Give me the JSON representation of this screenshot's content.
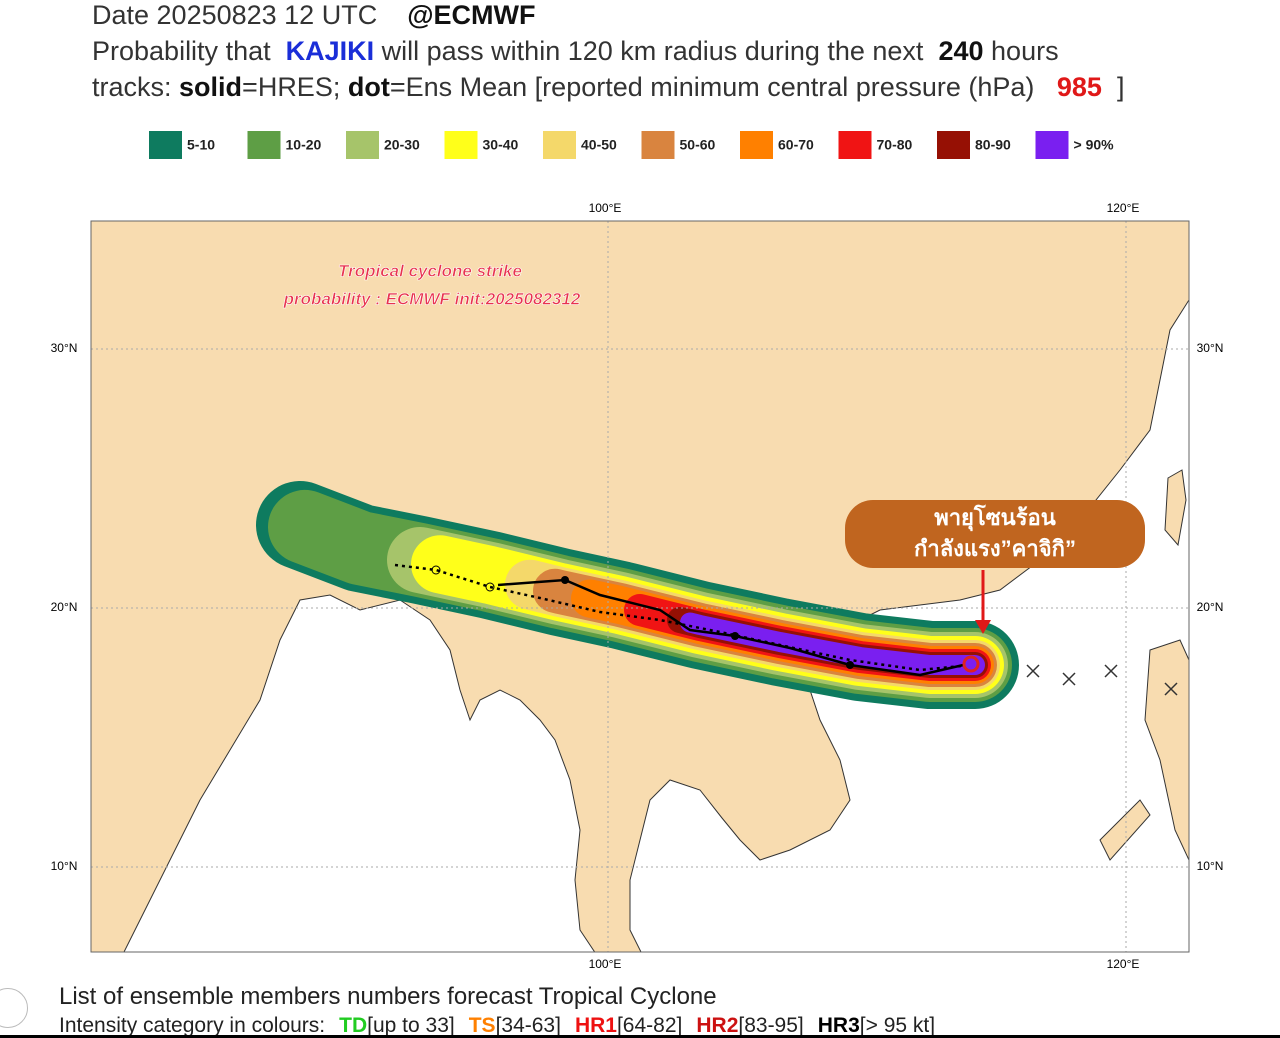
{
  "header": {
    "date": "Date 20250823 12 UTC",
    "source": "@ECMWF",
    "line2": [
      "Probability that",
      "KAJIKI",
      "will pass within 120 km radius during the next",
      "240",
      "hours"
    ],
    "line3": [
      "tracks:",
      "solid",
      "=HRES;",
      "dot",
      "=Ens Mean [reported minimum central pressure (hPa)",
      "985",
      "]"
    ]
  },
  "legend": [
    {
      "label": "5-10",
      "color": "#0e7b5f"
    },
    {
      "label": "10-20",
      "color": "#5e9e45"
    },
    {
      "label": "20-30",
      "color": "#a6c46a"
    },
    {
      "label": "30-40",
      "color": "#ffff1a"
    },
    {
      "label": "40-50",
      "color": "#f4d86a"
    },
    {
      "label": "50-60",
      "color": "#d9843f"
    },
    {
      "label": "60-70",
      "color": "#ff8000"
    },
    {
      "label": "70-80",
      "color": "#f01414"
    },
    {
      "label": "80-90",
      "color": "#961004"
    },
    {
      "label": "> 90%",
      "color": "#7a1ff0"
    }
  ],
  "map": {
    "lon_labels": [
      "100°E",
      "120°E"
    ],
    "lat_labels": [
      "30°N",
      "20°N",
      "10°N"
    ],
    "annotation": [
      "Tropical cyclone strike",
      "probability : ECMWF init:2025082312"
    ],
    "callout": [
      "พายุโซนร้อน",
      "กำลังแรง”คาจิกิ”"
    ]
  },
  "footer": {
    "title": "List of ensemble members numbers forecast Tropical Cyclone",
    "prefix": "Intensity category in colours:",
    "categories": [
      {
        "code": "TD",
        "range": "[up to 33]",
        "color": "#22cc22"
      },
      {
        "code": "TS",
        "range": "[34-63]",
        "color": "#ff8000"
      },
      {
        "code": "HR1",
        "range": "[64-82]",
        "color": "#ee1111"
      },
      {
        "code": "HR2",
        "range": "[83-95]",
        "color": "#cc1111"
      },
      {
        "code": "HR3",
        "range": "[> 95 kt]",
        "color": "#000000"
      }
    ]
  }
}
